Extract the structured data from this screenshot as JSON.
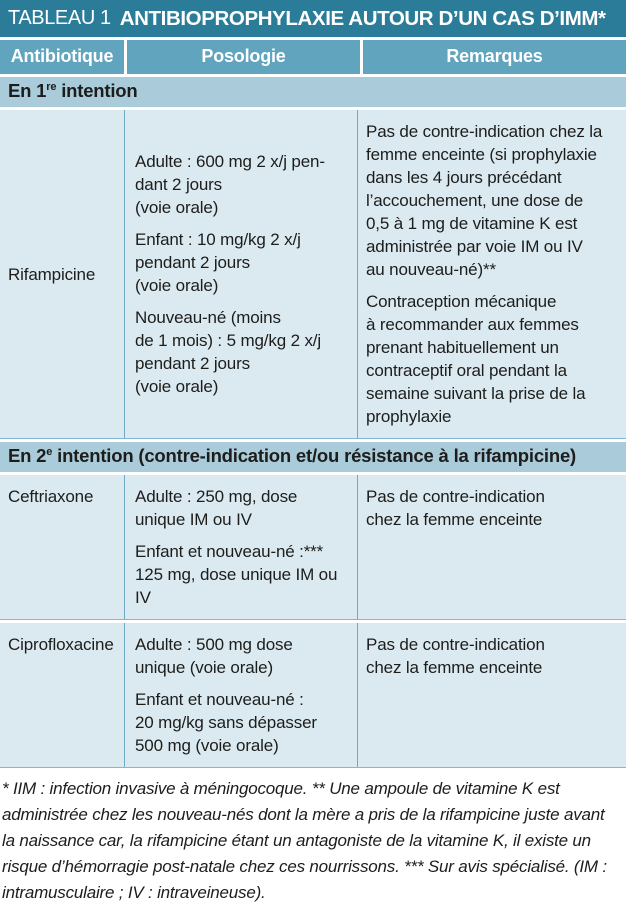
{
  "title": {
    "label": "TABLEAU 1",
    "text": "ANTIBIOPROPHYLAXIE AUTOUR D’UN CAS D’IMM*"
  },
  "header": {
    "col1": "Antibiotique",
    "col2": "Posologie",
    "col3": "Remarques"
  },
  "section1": {
    "prefix": "En 1",
    "sup": "re",
    "suffix": " intention"
  },
  "section2": {
    "prefix": "En 2",
    "sup": "e",
    "suffix": " intention (contre-indication et/ou résistance à la rifampicine)"
  },
  "row1": {
    "name": "Rifampicine",
    "posologie_p1": "Adulte : 600 mg 2 x/j pen-\ndant 2 jours\n(voie orale)",
    "posologie_p2": "Enfant : 10 mg/kg 2 x/j\npendant 2 jours\n(voie orale)",
    "posologie_p3": "Nouveau-né (moins\nde 1 mois) : 5 mg/kg 2 x/j\npendant 2 jours\n(voie orale)",
    "remarques_p1": "Pas de contre-indication chez la\nfemme enceinte (si prophylaxie\ndans les 4 jours précédant\nl’accouchement, une dose de\n0,5 à 1 mg de vitamine K est\nadministrée par voie IM ou IV\nau nouveau-né)**",
    "remarques_p2": "Contraception mécanique\nà recommander aux femmes\nprenant habituellement un\ncontraceptif oral pendant la\nsemaine suivant la prise de la\nprophylaxie"
  },
  "row2": {
    "name": "Ceftriaxone",
    "posologie_p1": "Adulte : 250 mg, dose\nunique IM ou IV",
    "posologie_p2": "Enfant et nouveau-né :***\n125 mg, dose unique IM ou IV",
    "remarques_p1": "Pas de contre-indication\nchez la femme enceinte"
  },
  "row3": {
    "name": "Ciprofloxacine",
    "posologie_p1": "Adulte : 500 mg dose\nunique (voie orale)",
    "posologie_p2": "Enfant et nouveau-né :\n20 mg/kg sans dépasser\n500 mg (voie orale)",
    "remarques_p1": "Pas de contre-indication\nchez la femme enceinte"
  },
  "footnote": "* IIM : infection invasive à méningocoque. ** Une ampoule de vitamine K est administrée chez les nouveau-nés dont la mère a pris de la rifampicine juste avant la naissance car, la rifampicine étant un antagoniste de la vitamine K, il existe un risque d’hémorragie post-natale chez ces nourrissons. *** Sur avis spécialisé. (IM : intramusculaire ; IV : intraveineuse).",
  "colors": {
    "title_bar": "#2a7c99",
    "header_row": "#61a4be",
    "section_band": "#a9cbda",
    "cell_background": "#dbeaf1",
    "divider": "#6fa9c4",
    "text": "#1d1d1b",
    "header_text": "#ffffff"
  }
}
